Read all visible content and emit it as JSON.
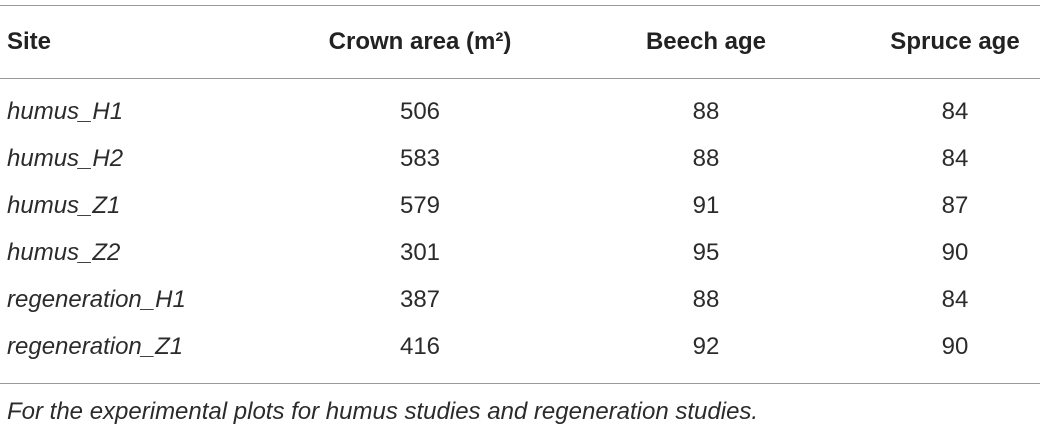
{
  "table": {
    "header": [
      "Site",
      "Crown area (m²)",
      "Beech age",
      "Spruce age"
    ],
    "rows": [
      [
        "humus_H1",
        506,
        88,
        84
      ],
      [
        "humus_H2",
        583,
        88,
        84
      ],
      [
        "humus_Z1",
        579,
        91,
        87
      ],
      [
        "humus_Z2",
        301,
        95,
        90
      ],
      [
        "regeneration_H1",
        387,
        88,
        84
      ],
      [
        "regeneration_Z1",
        416,
        92,
        90
      ]
    ]
  },
  "footnote": "For the experimental plots for humus studies and regeneration studies."
}
